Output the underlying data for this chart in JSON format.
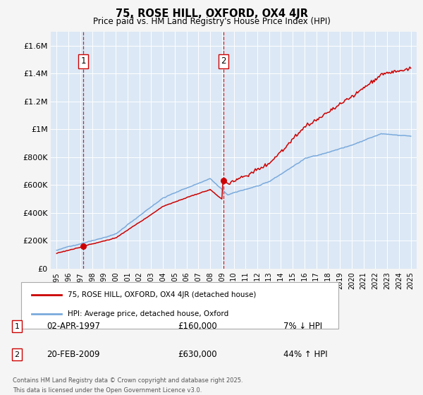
{
  "title": "75, ROSE HILL, OXFORD, OX4 4JR",
  "subtitle": "Price paid vs. HM Land Registry's House Price Index (HPI)",
  "ylabel_ticks": [
    "£0",
    "£200K",
    "£400K",
    "£600K",
    "£800K",
    "£1M",
    "£1.2M",
    "£1.4M",
    "£1.6M"
  ],
  "ytick_values": [
    0,
    200000,
    400000,
    600000,
    800000,
    1000000,
    1200000,
    1400000,
    1600000
  ],
  "ylim": [
    0,
    1700000
  ],
  "xlim_start": 1994.5,
  "xlim_end": 2025.5,
  "purchase1_date": 1997.25,
  "purchase1_price": 160000,
  "purchase1_label": "1",
  "purchase2_date": 2009.12,
  "purchase2_price": 630000,
  "purchase2_label": "2",
  "ann1_date": "02-APR-1997",
  "ann1_price": "£160,000",
  "ann1_hpi": "7% ↓ HPI",
  "ann2_date": "20-FEB-2009",
  "ann2_price": "£630,000",
  "ann2_hpi": "44% ↑ HPI",
  "hpi_line_color": "#7aaadd",
  "price_line_color": "#cc0000",
  "dashed_line_color": "#cc0000",
  "marker_color": "#cc0000",
  "chart_bg_color": "#dce8f5",
  "outer_bg_color": "#f0f0f0",
  "bottom_bg_color": "#ffffff",
  "grid_color": "#ffffff",
  "legend1": "75, ROSE HILL, OXFORD, OX4 4JR (detached house)",
  "legend2": "HPI: Average price, detached house, Oxford",
  "footnote1": "Contains HM Land Registry data © Crown copyright and database right 2025.",
  "footnote2": "This data is licensed under the Open Government Licence v3.0.",
  "xtick_years": [
    1995,
    1996,
    1997,
    1998,
    1999,
    2000,
    2001,
    2002,
    2003,
    2004,
    2005,
    2006,
    2007,
    2008,
    2009,
    2010,
    2011,
    2012,
    2013,
    2014,
    2015,
    2016,
    2017,
    2018,
    2019,
    2020,
    2021,
    2022,
    2023,
    2024,
    2025
  ]
}
